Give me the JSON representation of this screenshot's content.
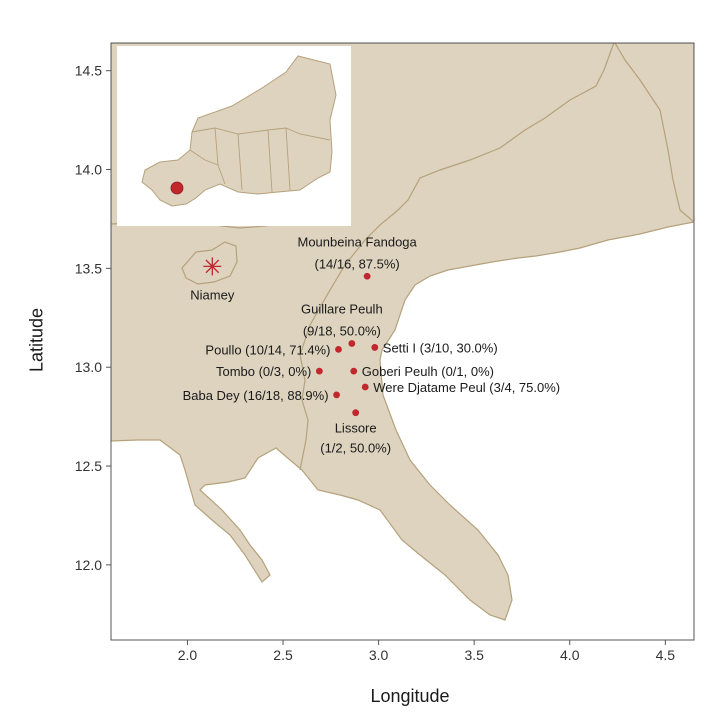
{
  "chart_data": {
    "type": "scatter",
    "title": "",
    "xlabel": "Longitude",
    "ylabel": "Latitude",
    "xlim": [
      1.6,
      4.65
    ],
    "ylim": [
      11.62,
      14.64
    ],
    "xticks": [
      "2.0",
      "2.5",
      "3.0",
      "3.5",
      "4.0",
      "4.5"
    ],
    "yticks": [
      "12.0",
      "12.5",
      "13.0",
      "13.5",
      "14.0",
      "14.5"
    ],
    "grid": false,
    "points": [
      {
        "label_line1": "Mounbeina Fandoga",
        "label_line2": "(14/16, 87.5%)",
        "x": 2.94,
        "y": 13.46,
        "label_pos": "above"
      },
      {
        "label_line1": "Guillare Peulh",
        "label_line2": "(9/18, 50.0%)",
        "x": 2.86,
        "y": 13.12,
        "label_pos": "above"
      },
      {
        "label_line1": "Setti I (3/10, 30.0%)",
        "label_line2": "",
        "x": 2.98,
        "y": 13.1,
        "label_pos": "right"
      },
      {
        "label_line1": "Poullo (10/14, 71.4%)",
        "label_line2": "",
        "x": 2.79,
        "y": 13.09,
        "label_pos": "left"
      },
      {
        "label_line1": "Tombo (0/3, 0%)",
        "label_line2": "",
        "x": 2.69,
        "y": 12.98,
        "label_pos": "left"
      },
      {
        "label_line1": "Goberi Peulh (0/1, 0%)",
        "label_line2": "",
        "x": 2.87,
        "y": 12.98,
        "label_pos": "right"
      },
      {
        "label_line1": "Were Djatame Peul (3/4, 75.0%)",
        "label_line2": "",
        "x": 2.93,
        "y": 12.9,
        "label_pos": "right"
      },
      {
        "label_line1": "Baba Dey (16/18, 88.9%)",
        "label_line2": "",
        "x": 2.78,
        "y": 12.86,
        "label_pos": "left"
      },
      {
        "label_line1": "Lissore",
        "label_line2": "(1/2, 50.0%)",
        "x": 2.88,
        "y": 12.77,
        "label_pos": "below"
      }
    ],
    "capital": {
      "name": "Niamey",
      "x": 2.13,
      "y": 13.51
    }
  },
  "colors": {
    "land": "#ddd3bf",
    "border": "#b5a27c",
    "point": "#c1272d",
    "panel_border": "#555555",
    "text": "#1a1a1a",
    "inset_highlight": "#c1272d"
  },
  "inset": {
    "description_icon": "niger-country-outline",
    "highlight": "study-area-marker"
  }
}
